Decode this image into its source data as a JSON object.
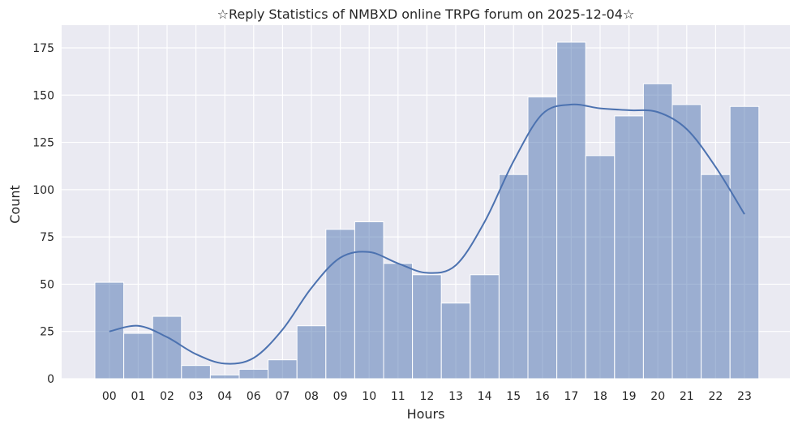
{
  "chart_data": {
    "type": "bar",
    "title": "☆Reply Statistics of NMBXD online TRPG forum on 2025-12-04☆",
    "xlabel": "Hours",
    "ylabel": "Count",
    "categories": [
      "00",
      "01",
      "02",
      "03",
      "04",
      "06",
      "07",
      "08",
      "09",
      "10",
      "11",
      "12",
      "13",
      "14",
      "15",
      "16",
      "17",
      "18",
      "19",
      "20",
      "21",
      "22",
      "23"
    ],
    "values": [
      51,
      24,
      33,
      7,
      2,
      5,
      10,
      28,
      79,
      83,
      61,
      55,
      40,
      55,
      108,
      149,
      178,
      118,
      139,
      156,
      145,
      108,
      144
    ],
    "kde": [
      25,
      28,
      22,
      13,
      8,
      11,
      26,
      48,
      64,
      67,
      61,
      56,
      60,
      83,
      115,
      140,
      145,
      143,
      142,
      141,
      132,
      112,
      87
    ],
    "ylim": [
      0,
      187
    ],
    "yticks": [
      0,
      25,
      50,
      75,
      100,
      125,
      150,
      175
    ],
    "grid": true,
    "colors": {
      "background": "#eaeaf2",
      "bar_fill": "#4c72b0",
      "bar_fill_opacity": 0.5,
      "kde_line": "#4c72b0",
      "grid": "#ffffff"
    }
  }
}
